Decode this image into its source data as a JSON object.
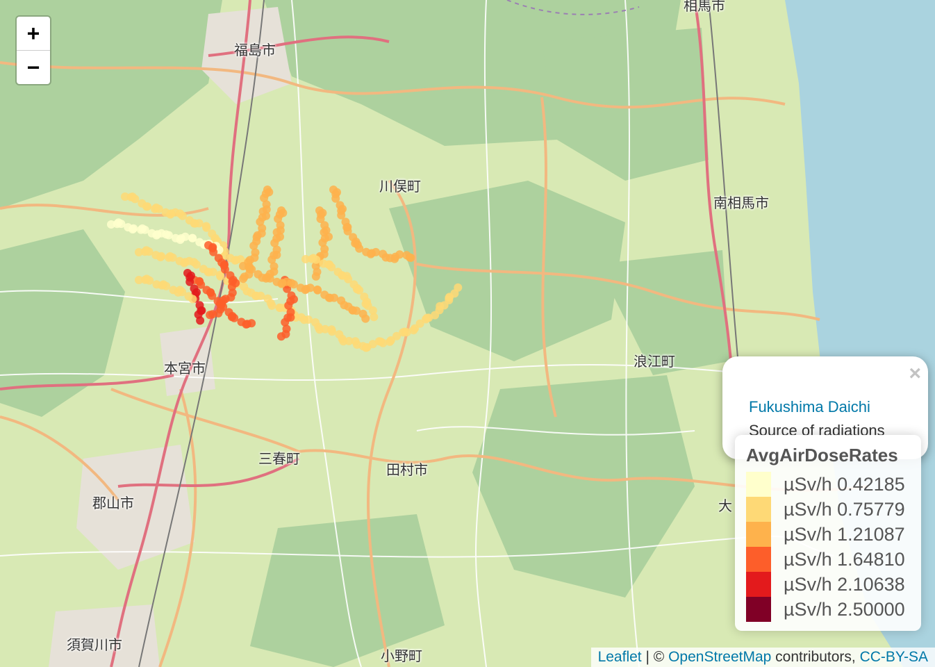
{
  "map": {
    "places": [
      {
        "name": "福島市"
      },
      {
        "name": "川俣町"
      },
      {
        "name": "南相馬市"
      },
      {
        "name": "本宮市"
      },
      {
        "name": "浪江町"
      },
      {
        "name": "三春町"
      },
      {
        "name": "田村市"
      },
      {
        "name": "郡山市"
      },
      {
        "name": "須賀川市"
      },
      {
        "name": "小野町"
      },
      {
        "name": "相馬市"
      },
      {
        "name": "大"
      }
    ],
    "colors": {
      "land": "#d8e9b4",
      "forest": "#add19e",
      "water": "#aad3df",
      "road_major": "#e892a2",
      "road_secondary": "#f7c89b",
      "road_minor": "#ffffff"
    }
  },
  "zoom": {
    "in_label": "+",
    "out_label": "−"
  },
  "popup": {
    "close_label": "×",
    "title": "Fukushima Daichi",
    "description": "Source of radiations"
  },
  "legend": {
    "title": "AvgAirDoseRates",
    "items": [
      {
        "label": "µSv/h 0.42185",
        "color": "#ffffcc"
      },
      {
        "label": "µSv/h 0.75779",
        "color": "#fed976"
      },
      {
        "label": "µSv/h 1.21087",
        "color": "#feb24c"
      },
      {
        "label": "µSv/h 1.64810",
        "color": "#fd5e2a"
      },
      {
        "label": "µSv/h 2.10638",
        "color": "#e31a1c"
      },
      {
        "label": "µSv/h 2.50000",
        "color": "#800026"
      }
    ]
  },
  "attribution": {
    "leaflet": "Leaflet",
    "separator": " | © ",
    "osm": "OpenStreetMap",
    "contrib": " contributors, ",
    "license": "CC-BY-SA"
  }
}
